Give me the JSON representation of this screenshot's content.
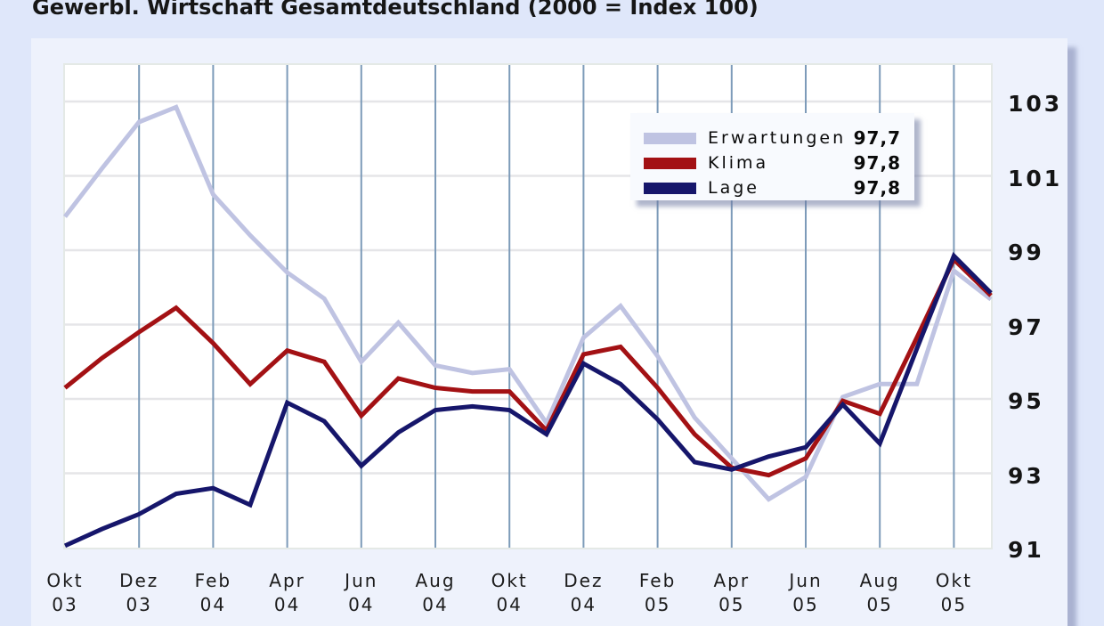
{
  "title": "Gewerbl. Wirtschaft Gesamtdeutschland (2000 = Index 100)",
  "legend": {
    "entries": [
      {
        "label": "Erwartungen",
        "value": "97,7"
      },
      {
        "label": "Klima",
        "value": "97,8"
      },
      {
        "label": "Lage",
        "value": "97,8"
      }
    ]
  },
  "colors": {
    "page_background": "#dfe7fa",
    "panel_background": "#eef2fc",
    "plot_background": "#ffffff",
    "vertical_gridline": "#7d9bb9",
    "horizontal_gridline": "#e5e5e8",
    "erwartungen_line": "#bfc3e2",
    "klima_line": "#a31114",
    "lage_line": "#16166b"
  },
  "chart_data": {
    "type": "line",
    "x_months": [
      "Okt 03",
      "Nov 03",
      "Dez 03",
      "Jan 04",
      "Feb 04",
      "Mär 04",
      "Apr 04",
      "Mai 04",
      "Jun 04",
      "Jul 04",
      "Aug 04",
      "Sep 04",
      "Okt 04",
      "Nov 04",
      "Dez 04",
      "Jan 05",
      "Feb 05",
      "Mär 05",
      "Apr 05",
      "Mai 05",
      "Jun 05",
      "Jul 05",
      "Aug 05",
      "Sep 05",
      "Okt 05",
      "Nov 05"
    ],
    "x_tick_labels": [
      {
        "month": "Okt",
        "year": "03"
      },
      {
        "month": "Dez",
        "year": "03"
      },
      {
        "month": "Feb",
        "year": "04"
      },
      {
        "month": "Apr",
        "year": "04"
      },
      {
        "month": "Jun",
        "year": "04"
      },
      {
        "month": "Aug",
        "year": "04"
      },
      {
        "month": "Okt",
        "year": "04"
      },
      {
        "month": "Dez",
        "year": "04"
      },
      {
        "month": "Feb",
        "year": "05"
      },
      {
        "month": "Apr",
        "year": "05"
      },
      {
        "month": "Jun",
        "year": "05"
      },
      {
        "month": "Aug",
        "year": "05"
      },
      {
        "month": "Okt",
        "year": "05"
      }
    ],
    "y_ticks": [
      91,
      93,
      95,
      97,
      99,
      101,
      103
    ],
    "ylim": [
      91,
      103.95
    ],
    "legend_position": "top-right",
    "grid": {
      "vertical": "every 2nd month",
      "horizontal": "every y tick"
    },
    "series": [
      {
        "name": "Erwartungen",
        "color": "#bfc3e2",
        "latest_label": "97,7",
        "values": [
          99.9,
          101.2,
          102.45,
          102.85,
          100.5,
          99.4,
          98.4,
          97.7,
          96.0,
          97.05,
          95.9,
          95.7,
          95.8,
          94.35,
          96.65,
          97.5,
          96.15,
          94.5,
          93.4,
          92.3,
          92.9,
          95.05,
          95.4,
          95.4,
          98.45,
          97.68
        ]
      },
      {
        "name": "Klima",
        "color": "#a31114",
        "latest_label": "97,8",
        "values": [
          95.3,
          96.1,
          96.8,
          97.45,
          96.5,
          95.4,
          96.3,
          96.0,
          94.55,
          95.55,
          95.3,
          95.2,
          95.2,
          94.15,
          96.2,
          96.4,
          95.3,
          94.05,
          93.15,
          92.95,
          93.4,
          94.95,
          94.6,
          96.65,
          98.75,
          97.78
        ]
      },
      {
        "name": "Lage",
        "color": "#16166b",
        "latest_label": "97,8",
        "values": [
          91.05,
          91.5,
          91.9,
          92.45,
          92.6,
          92.15,
          94.9,
          94.4,
          93.2,
          94.1,
          94.7,
          94.8,
          94.7,
          94.05,
          95.95,
          95.4,
          94.45,
          93.3,
          93.1,
          93.45,
          93.7,
          94.85,
          93.8,
          96.35,
          98.85,
          97.85
        ]
      }
    ]
  }
}
